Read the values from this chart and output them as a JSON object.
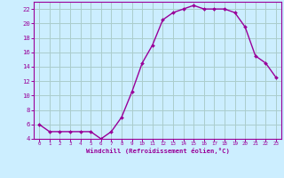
{
  "x": [
    0,
    1,
    2,
    3,
    4,
    5,
    6,
    7,
    8,
    9,
    10,
    11,
    12,
    13,
    14,
    15,
    16,
    17,
    18,
    19,
    20,
    21,
    22,
    23
  ],
  "y": [
    6,
    5,
    5,
    5,
    5,
    5,
    4,
    5,
    7,
    10.5,
    14.5,
    17,
    20.5,
    21.5,
    22,
    22.5,
    22,
    22,
    22,
    21.5,
    19.5,
    15.5,
    14.5,
    12.5
  ],
  "line_color": "#990099",
  "marker_color": "#990099",
  "bg_color": "#cceeff",
  "grid_color": "#aacccc",
  "xlabel": "Windchill (Refroidissement éolien,°C)",
  "xlabel_color": "#990099",
  "tick_color": "#990099",
  "spine_color": "#990099",
  "ylim_min": 4,
  "ylim_max": 23,
  "xlim_min": -0.5,
  "xlim_max": 23.5,
  "yticks": [
    4,
    6,
    8,
    10,
    12,
    14,
    16,
    18,
    20,
    22
  ],
  "xticks": [
    0,
    1,
    2,
    3,
    4,
    5,
    6,
    7,
    8,
    9,
    10,
    11,
    12,
    13,
    14,
    15,
    16,
    17,
    18,
    19,
    20,
    21,
    22,
    23
  ]
}
